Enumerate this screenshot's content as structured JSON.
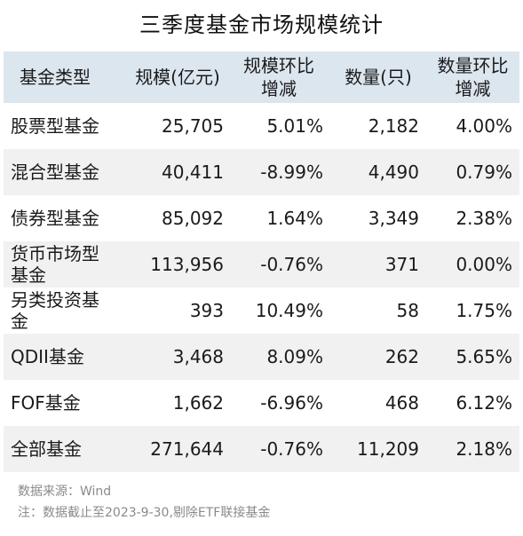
{
  "title": "三季度基金市场规模统计",
  "watermark": "Wind",
  "table": {
    "headers": [
      "基金类型",
      "规模(亿元)",
      "规模环比\n增减",
      "数量(只)",
      "数量环比\n增减"
    ],
    "header_lines": [
      [
        "基金类型"
      ],
      [
        "规模(亿元)"
      ],
      [
        "规模环比",
        "增减"
      ],
      [
        "数量(只)"
      ],
      [
        "数量环比",
        "增减"
      ]
    ],
    "rows": [
      {
        "type": "股票型基金",
        "scale": "25,705",
        "scale_change": "5.01%",
        "count": "2,182",
        "count_change": "4.00%"
      },
      {
        "type": "混合型基金",
        "scale": "40,411",
        "scale_change": "-8.99%",
        "count": "4,490",
        "count_change": "0.79%"
      },
      {
        "type": "债券型基金",
        "scale": "85,092",
        "scale_change": "1.64%",
        "count": "3,349",
        "count_change": "2.38%"
      },
      {
        "type": "货币市场型基金",
        "scale": "113,956",
        "scale_change": "-0.76%",
        "count": "371",
        "count_change": "0.00%"
      },
      {
        "type": "另类投资基金",
        "scale": "393",
        "scale_change": "10.49%",
        "count": "58",
        "count_change": "1.75%"
      },
      {
        "type": "QDII基金",
        "scale": "3,468",
        "scale_change": "8.09%",
        "count": "262",
        "count_change": "5.65%"
      },
      {
        "type": "FOF基金",
        "scale": "1,662",
        "scale_change": "-6.96%",
        "count": "468",
        "count_change": "6.12%"
      },
      {
        "type": "全部基金",
        "scale": "271,644",
        "scale_change": "-0.76%",
        "count": "11,209",
        "count_change": "2.18%"
      }
    ]
  },
  "footer": {
    "source": "数据来源：Wind",
    "note": "注：数据截止至2023-9-30,剔除ETF联接基金"
  },
  "colors": {
    "header_bg": "#dce6ef",
    "stripe_bg": "#f1f1f1",
    "note_text": "#8a8a8a"
  }
}
